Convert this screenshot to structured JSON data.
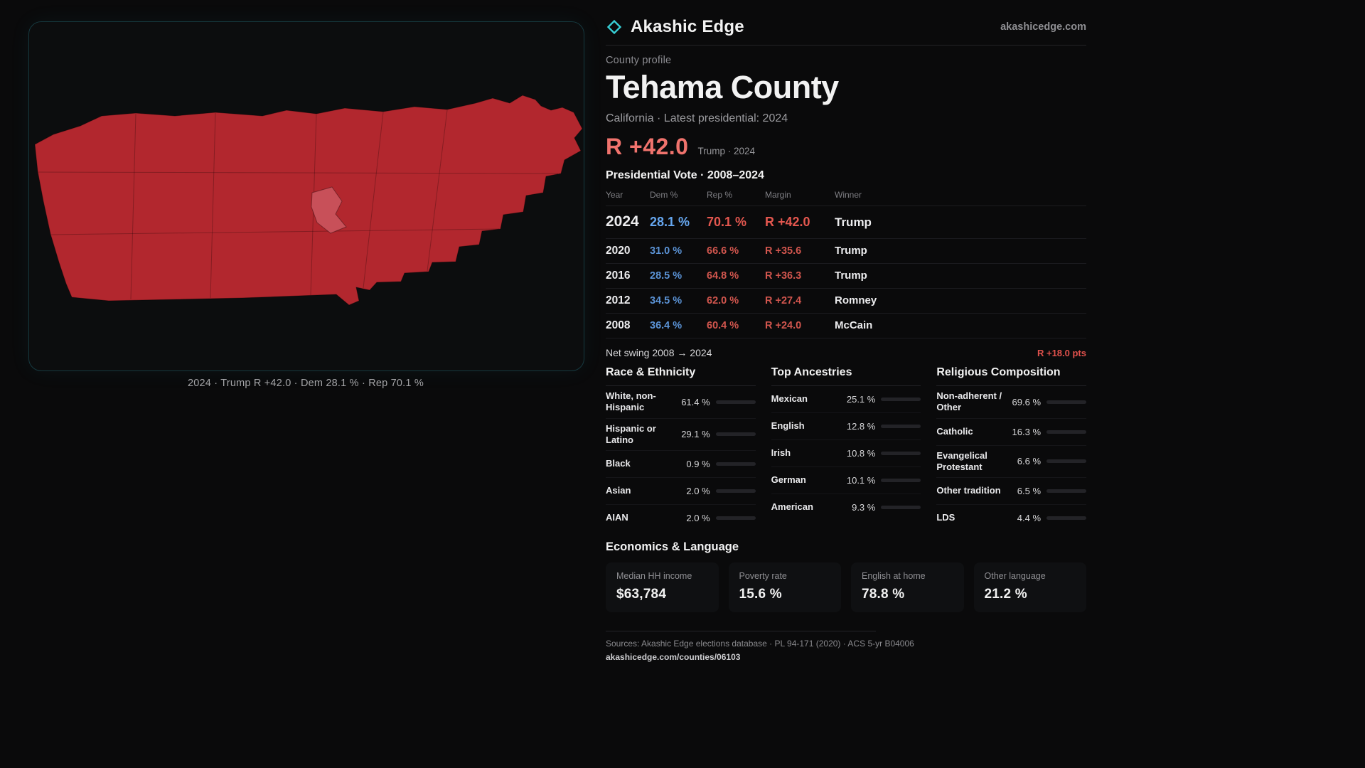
{
  "brand": {
    "name": "Akashic Edge",
    "domain": "akashicedge.com",
    "accent": "#38cfd6"
  },
  "map": {
    "fill": "#b2272e",
    "highlight_fill": "#c85059",
    "caption": "2024 · Trump R +42.0 · Dem 28.1 % · Rep 70.1 %"
  },
  "profile": {
    "kicker": "County profile",
    "title": "Tehama County",
    "subtitle": "California · Latest presidential: 2024",
    "headline_margin": "R +42.0",
    "headline_note": "Trump · 2024"
  },
  "vote_table": {
    "title": "Presidential Vote · 2008–2024",
    "columns": {
      "year": "Year",
      "dem": "Dem %",
      "rep": "Rep %",
      "margin": "Margin",
      "winner": "Winner"
    },
    "rows": [
      {
        "year": "2024",
        "dem": "28.1 %",
        "rep": "70.1 %",
        "margin": "R +42.0",
        "winner": "Trump"
      },
      {
        "year": "2020",
        "dem": "31.0 %",
        "rep": "66.6 %",
        "margin": "R +35.6",
        "winner": "Trump"
      },
      {
        "year": "2016",
        "dem": "28.5 %",
        "rep": "64.8 %",
        "margin": "R +36.3",
        "winner": "Trump"
      },
      {
        "year": "2012",
        "dem": "34.5 %",
        "rep": "62.0 %",
        "margin": "R +27.4",
        "winner": "Romney"
      },
      {
        "year": "2008",
        "dem": "36.4 %",
        "rep": "60.4 %",
        "margin": "R +24.0",
        "winner": "McCain"
      }
    ],
    "net_swing_label": "Net swing 2008 → 2024",
    "net_swing_value": "R +18.0 pts"
  },
  "demo_sections": [
    {
      "title": "Race & Ethnicity",
      "rows": [
        {
          "label": "White, non-Hispanic",
          "value": "61.4 %",
          "pct": 61.4,
          "color": "#8f98ab"
        },
        {
          "label": "Hispanic or Latino",
          "value": "29.1 %",
          "pct": 29.1,
          "color": "#d9a63c"
        },
        {
          "label": "Black",
          "value": "0.9 %",
          "pct": 0.9,
          "color": "#7f7f85"
        },
        {
          "label": "Asian",
          "value": "2.0 %",
          "pct": 2.0,
          "color": "#37b877"
        },
        {
          "label": "AIAN",
          "value": "2.0 %",
          "pct": 2.0,
          "color": "#d4742f"
        }
      ]
    },
    {
      "title": "Top Ancestries",
      "rows": [
        {
          "label": "Mexican",
          "value": "25.1 %",
          "pct": 25.1,
          "color": "#d9a63c"
        },
        {
          "label": "English",
          "value": "12.8 %",
          "pct": 12.8,
          "color": "#8f98ab"
        },
        {
          "label": "Irish",
          "value": "10.8 %",
          "pct": 10.8,
          "color": "#8f98ab"
        },
        {
          "label": "German",
          "value": "10.1 %",
          "pct": 10.1,
          "color": "#8a8f9e"
        },
        {
          "label": "American",
          "value": "9.3 %",
          "pct": 9.3,
          "color": "#85858a"
        }
      ]
    },
    {
      "title": "Religious Composition",
      "rows": [
        {
          "label": "Non-adherent / Other",
          "value": "69.6 %",
          "pct": 69.6,
          "color": "#8f98ab"
        },
        {
          "label": "Catholic",
          "value": "16.3 %",
          "pct": 16.3,
          "color": "#d9a63c"
        },
        {
          "label": "Evangelical Protestant",
          "value": "6.6 %",
          "pct": 6.6,
          "color": "#e06a66"
        },
        {
          "label": "Other tradition",
          "value": "6.5 %",
          "pct": 6.5,
          "color": "#85858a"
        },
        {
          "label": "LDS",
          "value": "4.4 %",
          "pct": 4.4,
          "color": "#37b8ad"
        }
      ]
    }
  ],
  "economics": {
    "title": "Economics & Language",
    "stats": [
      {
        "label": "Median HH income",
        "value": "$63,784"
      },
      {
        "label": "Poverty rate",
        "value": "15.6 %"
      },
      {
        "label": "English at home",
        "value": "78.8 %"
      },
      {
        "label": "Other language",
        "value": "21.2 %"
      }
    ]
  },
  "footer": {
    "sources": "Sources: Akashic Edge elections database · PL 94-171 (2020) · ACS 5-yr B04006",
    "permalink": "akashicedge.com/counties/06103"
  }
}
